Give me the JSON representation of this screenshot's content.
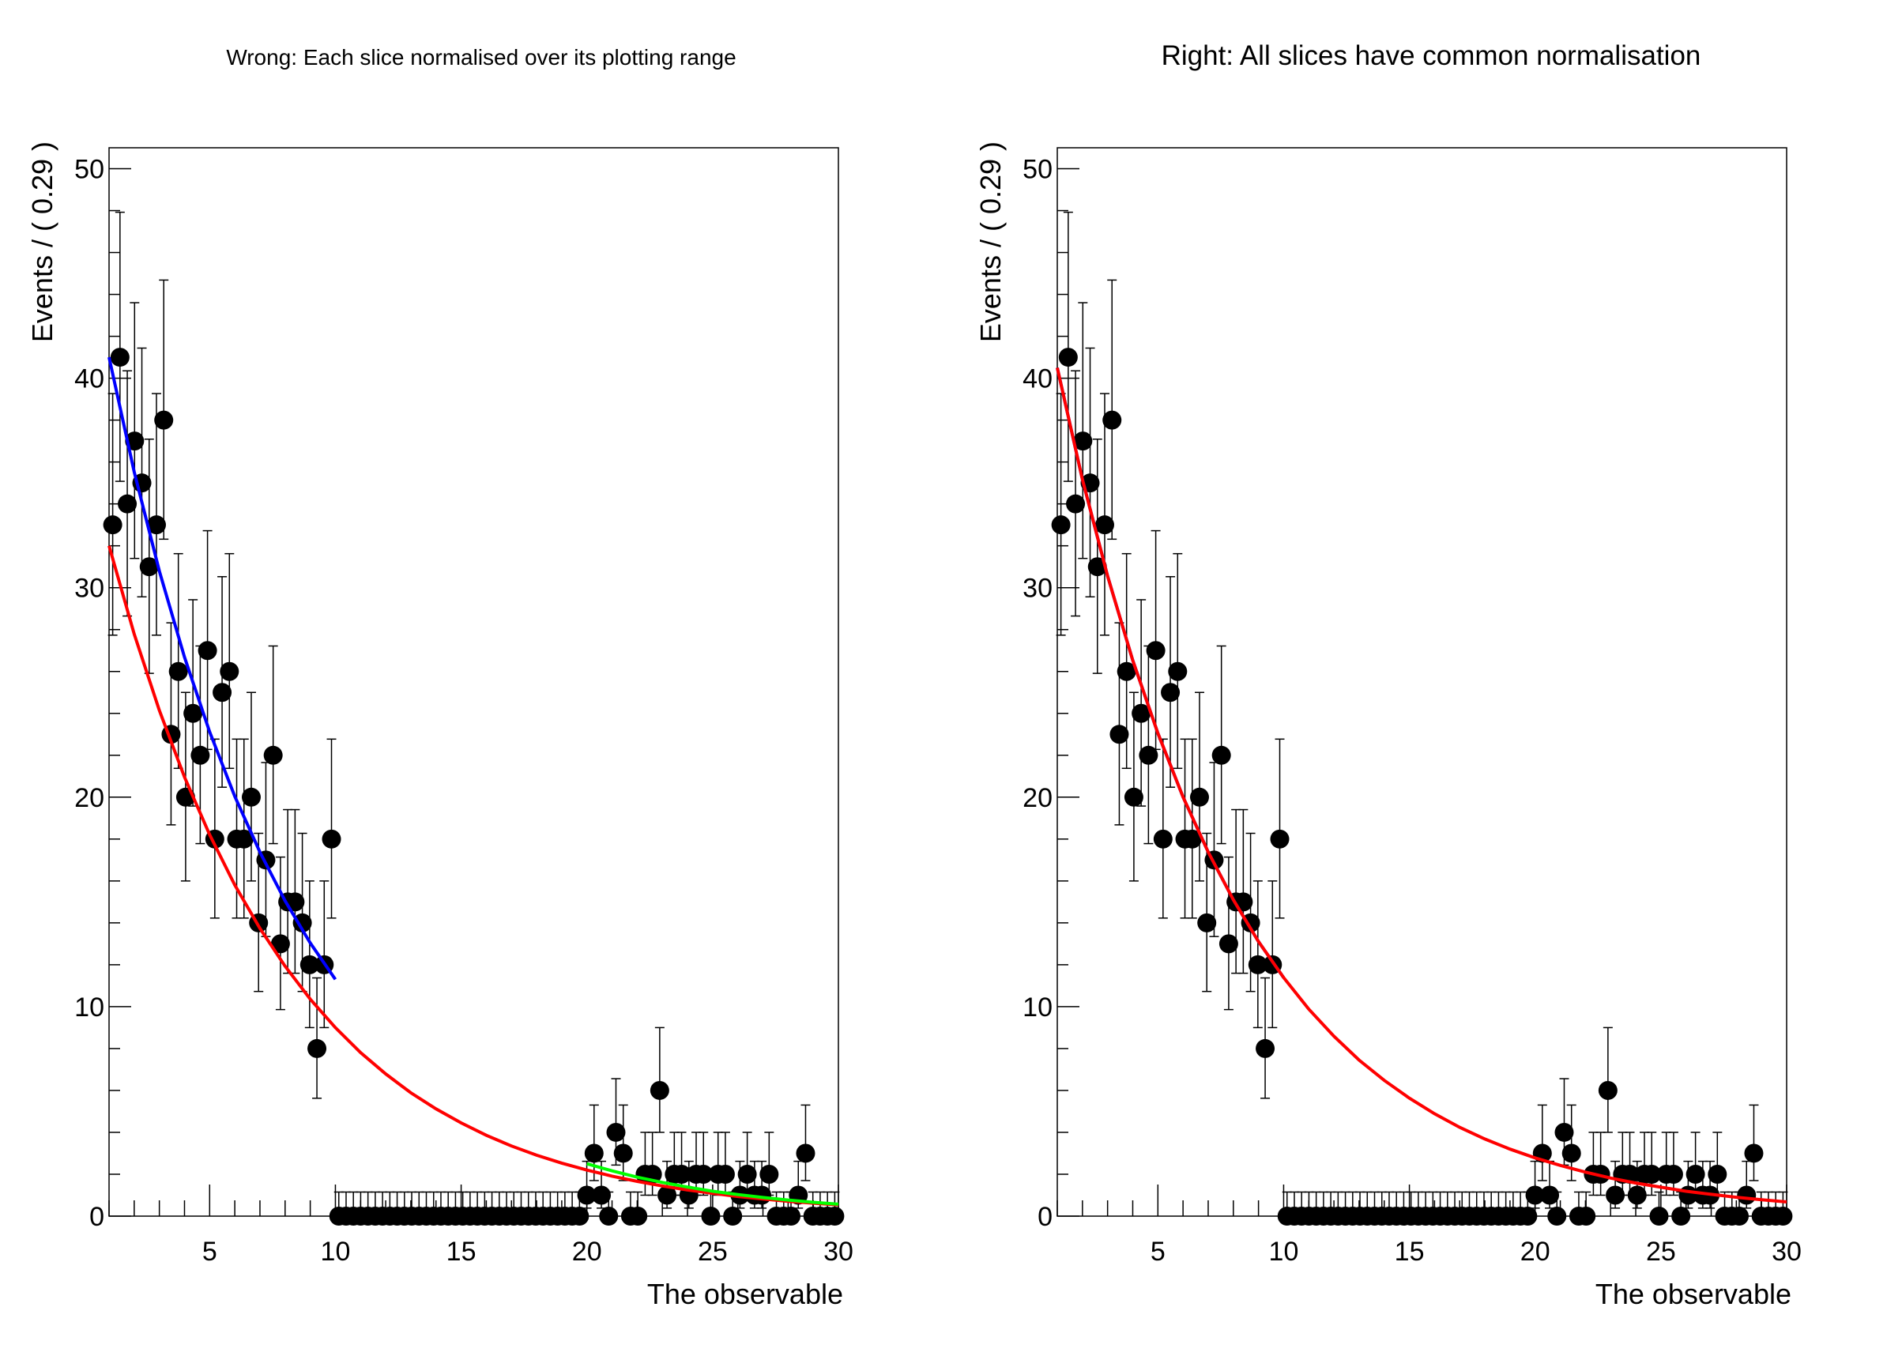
{
  "chart_data": [
    {
      "type": "scatter",
      "title": "Wrong: Each slice normalised over its plotting range",
      "xlabel": "The observable",
      "ylabel": "Events / ( 0.29 )",
      "xlim": [
        1,
        30
      ],
      "ylim": [
        0,
        51
      ],
      "bin_width": 0.29,
      "x_ticks": [
        "5",
        "10",
        "15",
        "20",
        "25",
        "30"
      ],
      "y_ticks": [
        "0",
        "10",
        "20",
        "30",
        "40",
        "50"
      ],
      "grid": false,
      "marker_color": "#000000",
      "counts": [
        33,
        41,
        34,
        37,
        35,
        31,
        33,
        38,
        23,
        26,
        20,
        24,
        22,
        27,
        18,
        25,
        26,
        18,
        18,
        20,
        14,
        17,
        22,
        13,
        15,
        15,
        14,
        12,
        8,
        12,
        18,
        0,
        0,
        0,
        0,
        0,
        0,
        0,
        0,
        0,
        0,
        0,
        0,
        0,
        0,
        0,
        0,
        0,
        0,
        0,
        0,
        0,
        0,
        0,
        0,
        0,
        0,
        0,
        0,
        0,
        0,
        0,
        0,
        0,
        0,
        1,
        3,
        1,
        0,
        4,
        3,
        0,
        0,
        2,
        2,
        6,
        1,
        2,
        2,
        1,
        2,
        2,
        0,
        2,
        2,
        0,
        1,
        2,
        1,
        1,
        2,
        0,
        0,
        0,
        1,
        3,
        0,
        0,
        0,
        0
      ],
      "curves": [
        {
          "color": "#ff0000",
          "x": [
            1,
            2,
            3,
            4,
            5,
            6,
            7,
            8,
            9,
            10,
            11,
            12,
            13,
            14,
            15,
            16,
            17,
            18,
            19,
            20,
            21,
            22,
            23,
            24,
            25,
            26,
            27,
            28,
            29,
            30
          ],
          "y": [
            32.0,
            27.79,
            24.14,
            20.96,
            18.21,
            15.81,
            13.73,
            11.93,
            10.36,
            9.0,
            7.81,
            6.79,
            5.89,
            5.12,
            4.45,
            3.86,
            3.35,
            2.91,
            2.53,
            2.2,
            1.91,
            1.66,
            1.44,
            1.25,
            1.09,
            0.94,
            0.82,
            0.71,
            0.62,
            0.54
          ]
        },
        {
          "color": "#0000ff",
          "x": [
            1,
            2,
            3,
            4,
            5,
            6,
            7,
            8,
            9,
            10
          ],
          "y": [
            41.0,
            35.53,
            30.79,
            26.68,
            23.12,
            20.04,
            17.37,
            15.05,
            13.04,
            11.3
          ]
        },
        {
          "color": "#00ff00",
          "x": [
            20,
            21,
            22,
            23,
            24,
            25,
            26,
            27,
            28,
            29,
            30
          ],
          "y": [
            2.5,
            2.16,
            1.86,
            1.61,
            1.39,
            1.19,
            1.03,
            0.89,
            0.77,
            0.66,
            0.57
          ]
        }
      ]
    },
    {
      "type": "scatter",
      "title": "Right: All slices have common normalisation",
      "xlabel": "The observable",
      "ylabel": "Events / ( 0.29 )",
      "xlim": [
        1,
        30
      ],
      "ylim": [
        0,
        51
      ],
      "bin_width": 0.29,
      "x_ticks": [
        "5",
        "10",
        "15",
        "20",
        "25",
        "30"
      ],
      "y_ticks": [
        "0",
        "10",
        "20",
        "30",
        "40",
        "50"
      ],
      "grid": false,
      "marker_color": "#000000",
      "counts": [
        33,
        41,
        34,
        37,
        35,
        31,
        33,
        38,
        23,
        26,
        20,
        24,
        22,
        27,
        18,
        25,
        26,
        18,
        18,
        20,
        14,
        17,
        22,
        13,
        15,
        15,
        14,
        12,
        8,
        12,
        18,
        0,
        0,
        0,
        0,
        0,
        0,
        0,
        0,
        0,
        0,
        0,
        0,
        0,
        0,
        0,
        0,
        0,
        0,
        0,
        0,
        0,
        0,
        0,
        0,
        0,
        0,
        0,
        0,
        0,
        0,
        0,
        0,
        0,
        0,
        1,
        3,
        1,
        0,
        4,
        3,
        0,
        0,
        2,
        2,
        6,
        1,
        2,
        2,
        1,
        2,
        2,
        0,
        2,
        2,
        0,
        1,
        2,
        1,
        1,
        2,
        0,
        0,
        0,
        1,
        3,
        0,
        0,
        0,
        0
      ],
      "curves": [
        {
          "color": "#0000ff",
          "x": [
            1,
            2,
            3,
            4,
            5,
            6,
            7,
            8,
            9,
            10
          ],
          "y": [
            40.5,
            35.17,
            30.55,
            26.53,
            23.05,
            20.01,
            17.38,
            15.1,
            13.11,
            11.39
          ]
        },
        {
          "color": "#ff0000",
          "x": [
            1,
            2,
            3,
            4,
            5,
            6,
            7,
            8,
            9,
            10,
            11,
            12,
            13,
            14,
            15,
            16,
            17,
            18,
            19,
            20,
            21,
            22,
            23,
            24,
            25,
            26,
            27,
            28,
            29,
            30
          ],
          "y": [
            40.5,
            35.17,
            30.55,
            26.53,
            23.05,
            20.01,
            17.38,
            15.1,
            13.11,
            11.39,
            9.88,
            8.59,
            7.45,
            6.48,
            5.63,
            4.89,
            4.24,
            3.68,
            3.2,
            2.78,
            2.42,
            2.1,
            1.82,
            1.58,
            1.38,
            1.19,
            1.04,
            0.9,
            0.78,
            0.68
          ]
        }
      ]
    }
  ]
}
